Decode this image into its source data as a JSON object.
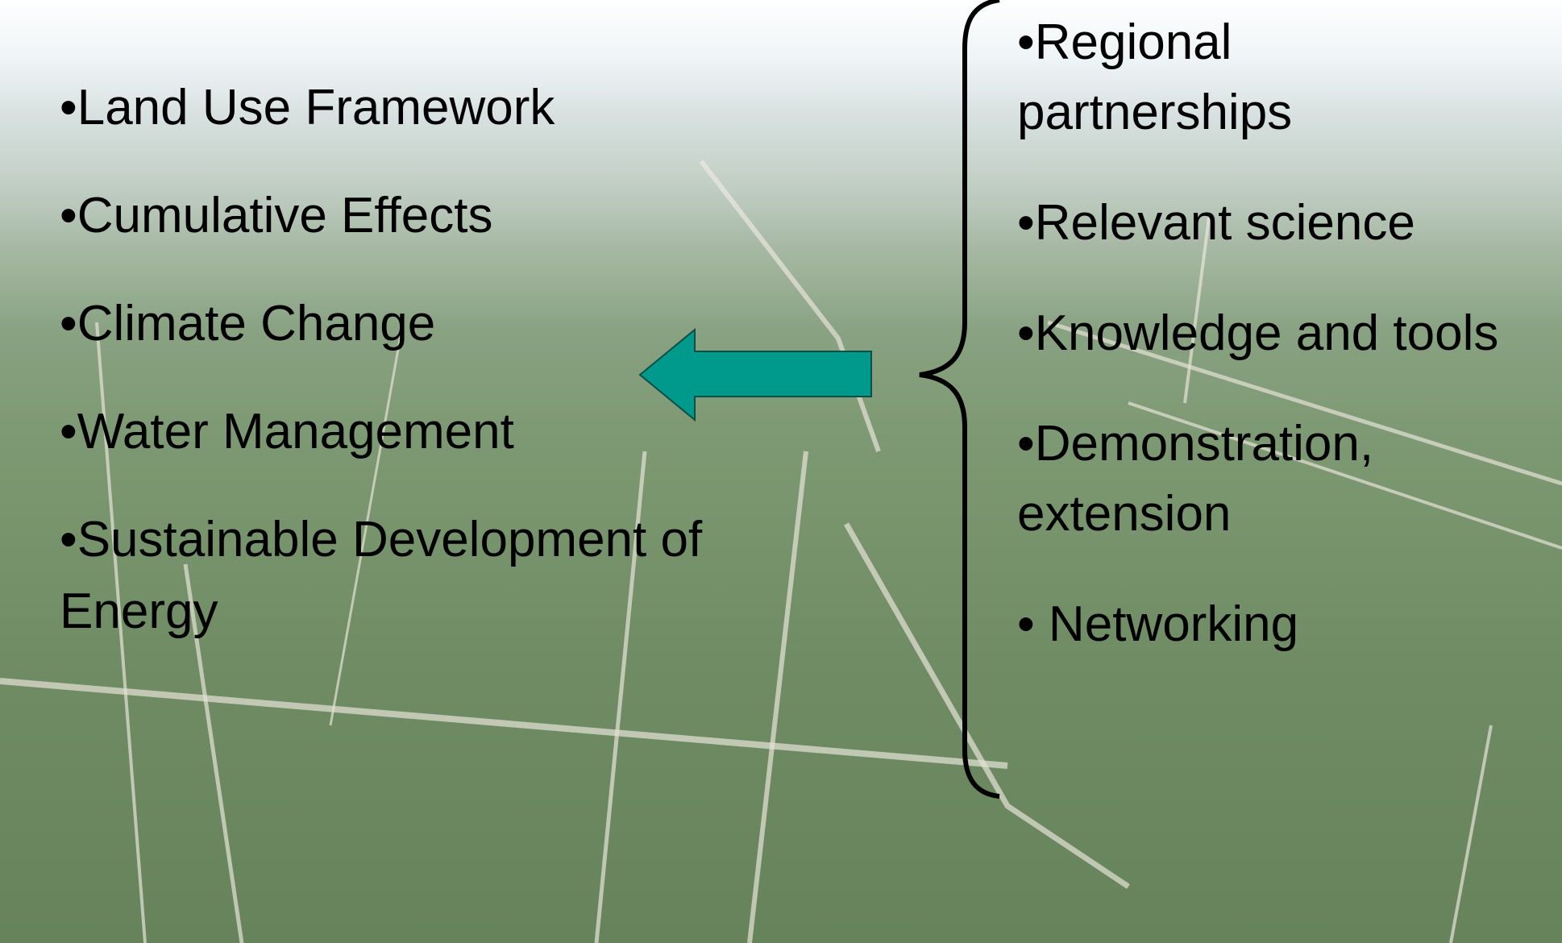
{
  "left_items": [
    "•Land Use Framework",
    "•Cumulative Effects",
    "•Climate Change",
    "•Water Management",
    "•Sustainable Development of Energy"
  ],
  "right_items": [
    "•Regional partnerships",
    "•Relevant science",
    "•Knowledge and tools",
    "•Demonstration, extension",
    "• Networking"
  ]
}
